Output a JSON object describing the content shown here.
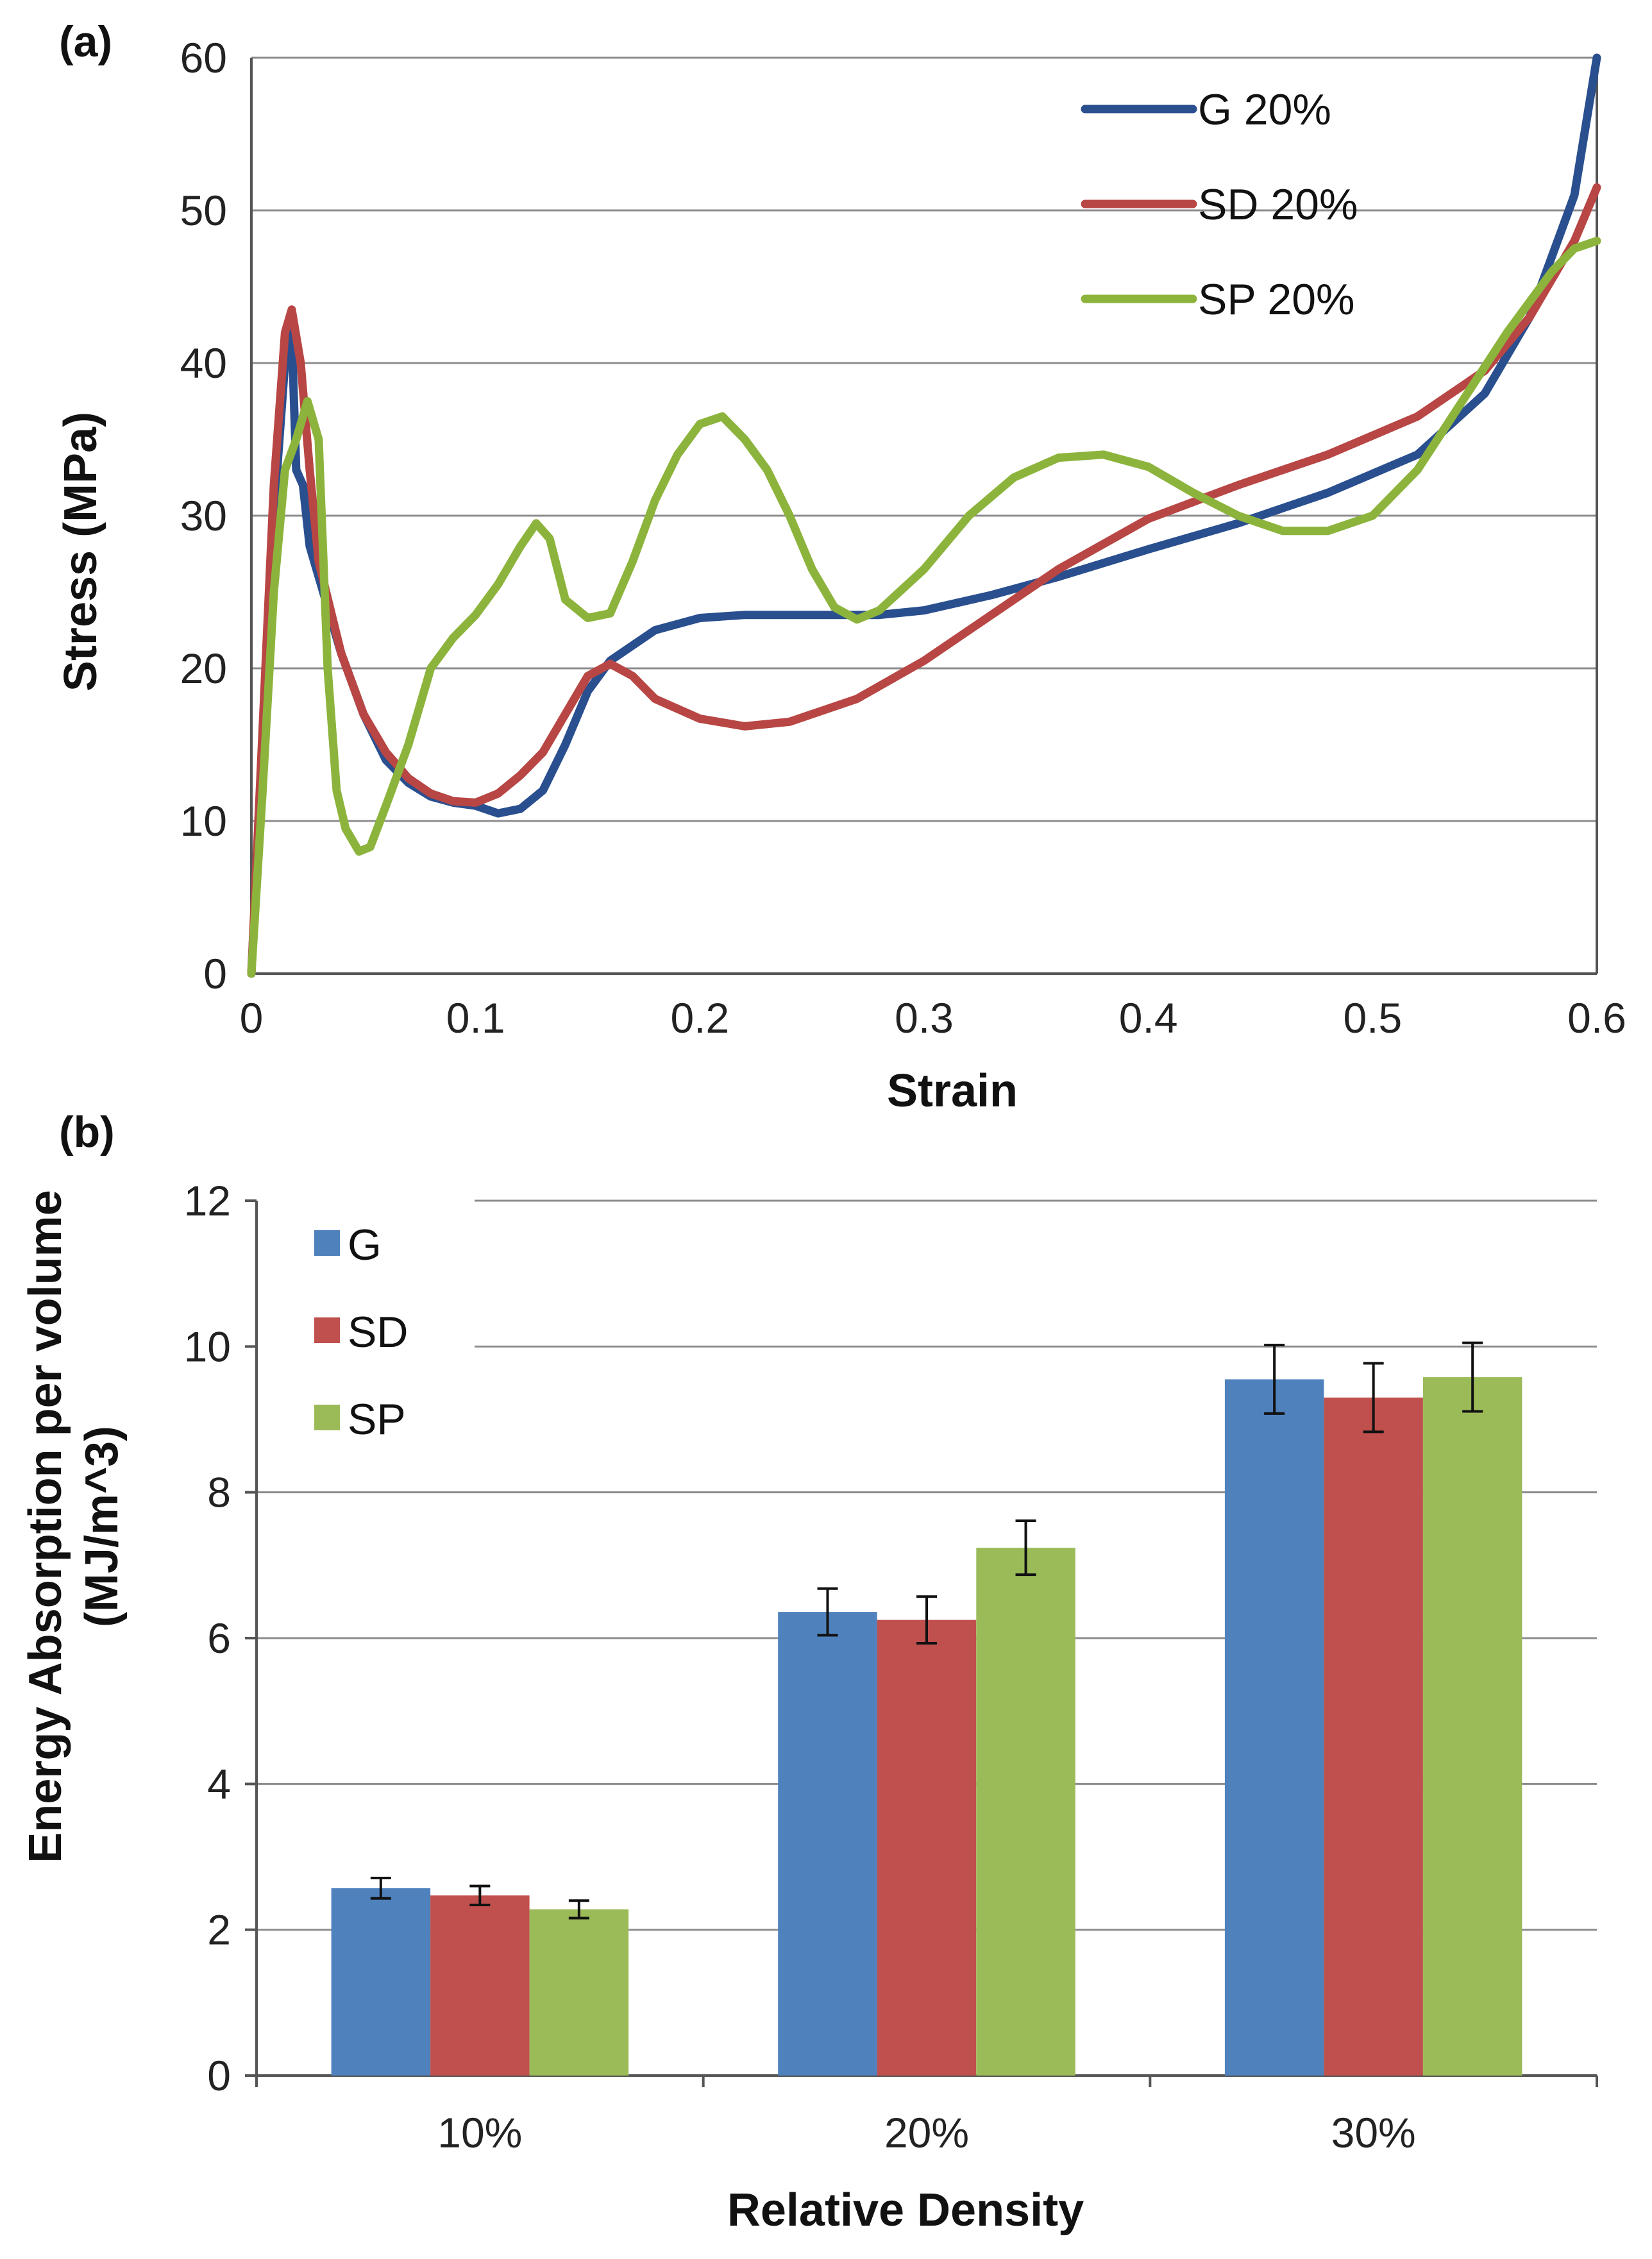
{
  "chart_data": [
    {
      "panel": "(a)",
      "type": "line",
      "title": "",
      "xlabel": "Strain",
      "ylabel": "Stress (MPa)",
      "xlim": [
        0,
        0.6
      ],
      "ylim": [
        0,
        60
      ],
      "x_ticks": [
        "0",
        "0.1",
        "0.2",
        "0.3",
        "0.4",
        "0.5",
        "0.6"
      ],
      "y_ticks": [
        "0",
        "10",
        "20",
        "30",
        "40",
        "50",
        "60"
      ],
      "grid": "horizontal",
      "legend": "top-right",
      "series": [
        {
          "name": "G 20%",
          "color": "#2a4f8f",
          "points": [
            [
              0,
              0
            ],
            [
              0.005,
              15
            ],
            [
              0.01,
              30
            ],
            [
              0.015,
              40
            ],
            [
              0.018,
              42
            ],
            [
              0.02,
              33
            ],
            [
              0.023,
              32
            ],
            [
              0.026,
              28
            ],
            [
              0.03,
              26
            ],
            [
              0.04,
              21
            ],
            [
              0.05,
              17
            ],
            [
              0.06,
              14
            ],
            [
              0.07,
              12.5
            ],
            [
              0.08,
              11.6
            ],
            [
              0.09,
              11.2
            ],
            [
              0.1,
              11
            ],
            [
              0.11,
              10.5
            ],
            [
              0.12,
              10.8
            ],
            [
              0.13,
              12
            ],
            [
              0.14,
              15
            ],
            [
              0.15,
              18.5
            ],
            [
              0.16,
              20.5
            ],
            [
              0.18,
              22.5
            ],
            [
              0.2,
              23.3
            ],
            [
              0.22,
              23.5
            ],
            [
              0.25,
              23.5
            ],
            [
              0.28,
              23.5
            ],
            [
              0.3,
              23.8
            ],
            [
              0.33,
              24.8
            ],
            [
              0.36,
              26
            ],
            [
              0.4,
              27.8
            ],
            [
              0.44,
              29.5
            ],
            [
              0.48,
              31.5
            ],
            [
              0.52,
              34
            ],
            [
              0.55,
              38
            ],
            [
              0.57,
              43
            ],
            [
              0.59,
              51
            ],
            [
              0.6,
              60
            ]
          ]
        },
        {
          "name": "SD 20%",
          "color": "#b84644",
          "points": [
            [
              0,
              0
            ],
            [
              0.005,
              16
            ],
            [
              0.01,
              32
            ],
            [
              0.015,
              42
            ],
            [
              0.018,
              43.5
            ],
            [
              0.022,
              40
            ],
            [
              0.026,
              33
            ],
            [
              0.03,
              27
            ],
            [
              0.04,
              21
            ],
            [
              0.05,
              17
            ],
            [
              0.06,
              14.5
            ],
            [
              0.07,
              12.8
            ],
            [
              0.08,
              11.8
            ],
            [
              0.09,
              11.3
            ],
            [
              0.1,
              11.2
            ],
            [
              0.11,
              11.8
            ],
            [
              0.12,
              13
            ],
            [
              0.13,
              14.5
            ],
            [
              0.14,
              17
            ],
            [
              0.15,
              19.5
            ],
            [
              0.16,
              20.3
            ],
            [
              0.17,
              19.5
            ],
            [
              0.18,
              18
            ],
            [
              0.2,
              16.7
            ],
            [
              0.22,
              16.2
            ],
            [
              0.24,
              16.5
            ],
            [
              0.27,
              18
            ],
            [
              0.3,
              20.5
            ],
            [
              0.33,
              23.5
            ],
            [
              0.36,
              26.5
            ],
            [
              0.4,
              29.8
            ],
            [
              0.44,
              32
            ],
            [
              0.48,
              34
            ],
            [
              0.52,
              36.5
            ],
            [
              0.55,
              39.5
            ],
            [
              0.57,
              43
            ],
            [
              0.59,
              48
            ],
            [
              0.6,
              51.5
            ]
          ]
        },
        {
          "name": "SP 20%",
          "color": "#8cb43c",
          "points": [
            [
              0,
              0
            ],
            [
              0.005,
              12
            ],
            [
              0.01,
              25
            ],
            [
              0.015,
              33
            ],
            [
              0.02,
              35
            ],
            [
              0.025,
              37.5
            ],
            [
              0.03,
              35
            ],
            [
              0.034,
              20
            ],
            [
              0.038,
              12
            ],
            [
              0.042,
              9.5
            ],
            [
              0.048,
              8
            ],
            [
              0.053,
              8.3
            ],
            [
              0.06,
              11
            ],
            [
              0.07,
              15
            ],
            [
              0.08,
              20
            ],
            [
              0.09,
              22
            ],
            [
              0.1,
              23.5
            ],
            [
              0.11,
              25.5
            ],
            [
              0.12,
              28
            ],
            [
              0.127,
              29.5
            ],
            [
              0.133,
              28.5
            ],
            [
              0.14,
              24.5
            ],
            [
              0.15,
              23.3
            ],
            [
              0.16,
              23.6
            ],
            [
              0.17,
              27
            ],
            [
              0.18,
              31
            ],
            [
              0.19,
              34
            ],
            [
              0.2,
              36
            ],
            [
              0.21,
              36.5
            ],
            [
              0.22,
              35
            ],
            [
              0.23,
              33
            ],
            [
              0.24,
              30
            ],
            [
              0.25,
              26.5
            ],
            [
              0.26,
              24
            ],
            [
              0.27,
              23.2
            ],
            [
              0.28,
              23.8
            ],
            [
              0.3,
              26.5
            ],
            [
              0.32,
              30
            ],
            [
              0.34,
              32.5
            ],
            [
              0.36,
              33.8
            ],
            [
              0.38,
              34
            ],
            [
              0.4,
              33.2
            ],
            [
              0.42,
              31.5
            ],
            [
              0.44,
              30
            ],
            [
              0.46,
              29
            ],
            [
              0.48,
              29
            ],
            [
              0.5,
              30
            ],
            [
              0.52,
              33
            ],
            [
              0.54,
              37.5
            ],
            [
              0.56,
              42
            ],
            [
              0.58,
              46
            ],
            [
              0.59,
              47.5
            ],
            [
              0.6,
              48
            ]
          ]
        }
      ]
    },
    {
      "panel": "(b)",
      "type": "bar",
      "title": "",
      "xlabel": "Relative Density",
      "ylabel": "Energy Absorption per volume",
      "ylabel_units": "(MJ/m^3)",
      "categories": [
        "10%",
        "20%",
        "30%"
      ],
      "ylim": [
        0,
        12
      ],
      "y_ticks": [
        "0",
        "2",
        "4",
        "6",
        "8",
        "10",
        "12"
      ],
      "grid": "horizontal",
      "legend": "top-left",
      "error_bars": true,
      "series": [
        {
          "name": "G",
          "color": "#4f81bd",
          "values": [
            2.57,
            6.36,
            9.55
          ],
          "errors": [
            0.14,
            0.32,
            0.47
          ]
        },
        {
          "name": "SD",
          "color": "#c0504d",
          "values": [
            2.47,
            6.25,
            9.3
          ],
          "errors": [
            0.13,
            0.32,
            0.47
          ]
        },
        {
          "name": "SP",
          "color": "#9bbb59",
          "values": [
            2.28,
            7.24,
            9.58
          ],
          "errors": [
            0.12,
            0.37,
            0.47
          ]
        }
      ]
    }
  ]
}
